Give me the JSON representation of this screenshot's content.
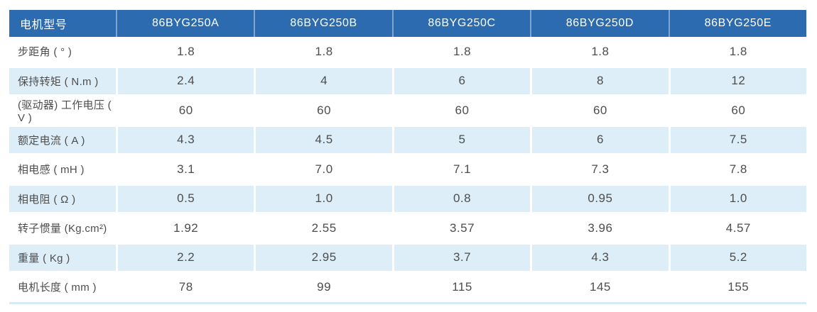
{
  "colors": {
    "header_bg": "#2c6bb0",
    "header_text": "#ffffff",
    "header_divider": "#7ea6d2",
    "row_alt_bg": "#ddeef9",
    "text": "#4d4d4d",
    "strip": "#d6eaf8"
  },
  "table": {
    "headers": [
      "电机型号",
      "86BYG250A",
      "86BYG250B",
      "86BYG250C",
      "86BYG250D",
      "86BYG250E"
    ],
    "rows": [
      {
        "label": "步距角 ( ° )",
        "values": [
          "1.8",
          "1.8",
          "1.8",
          "1.8",
          "1.8"
        ]
      },
      {
        "label": "保持转矩 ( N.m )",
        "values": [
          "2.4",
          "4",
          "6",
          "8",
          "12"
        ]
      },
      {
        "label": "(驱动器) 工作电压 ( V )",
        "values": [
          "60",
          "60",
          "60",
          "60",
          "60"
        ]
      },
      {
        "label": "额定电流 ( A )",
        "values": [
          "4.3",
          "4.5",
          "5",
          "6",
          "7.5"
        ]
      },
      {
        "label": "相电感 ( mH )",
        "values": [
          "3.1",
          "7.0",
          "7.1",
          "7.3",
          "7.8"
        ]
      },
      {
        "label": "相电阻 ( Ω )",
        "values": [
          "0.5",
          "1.0",
          "0.8",
          "0.95",
          "1.0"
        ]
      },
      {
        "label": "转子惯量 (Kg.cm²)",
        "values": [
          "1.92",
          "2.55",
          "3.57",
          "3.96",
          "4.57"
        ]
      },
      {
        "label": "重量 ( Kg )",
        "values": [
          "2.2",
          "2.95",
          "3.7",
          "4.3",
          "5.2"
        ]
      },
      {
        "label": "电机长度 ( mm )",
        "values": [
          "78",
          "99",
          "115",
          "145",
          "155"
        ]
      }
    ]
  }
}
